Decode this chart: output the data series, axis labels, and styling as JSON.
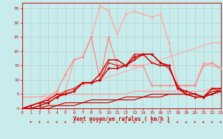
{
  "xlabel": "Vent moyen/en rafales ( km/h )",
  "bg": "#c8eceb",
  "grid_color": "#aacccc",
  "xlim": [
    0,
    23
  ],
  "ylim": [
    0,
    37
  ],
  "xticks": [
    0,
    1,
    2,
    3,
    4,
    5,
    6,
    7,
    8,
    9,
    10,
    11,
    12,
    13,
    14,
    15,
    16,
    17,
    18,
    19,
    20,
    21,
    22,
    23
  ],
  "yticks": [
    0,
    5,
    10,
    15,
    20,
    25,
    30,
    35
  ],
  "lines": [
    {
      "x": [
        0,
        1,
        2,
        3,
        4,
        5,
        6,
        7,
        8,
        9,
        10,
        11,
        12,
        13,
        14,
        15,
        16,
        17,
        18,
        19,
        20,
        21,
        22,
        23
      ],
      "y": [
        4,
        4,
        4,
        5,
        5,
        6,
        7,
        8,
        9,
        10,
        11,
        12,
        13,
        14,
        15,
        16,
        17,
        18,
        19,
        20,
        21,
        22,
        23,
        23
      ],
      "color": "#ffaaaa",
      "lw": 0.9,
      "marker": null,
      "ms": 0,
      "zorder": 2
    },
    {
      "x": [
        0,
        1,
        2,
        3,
        4,
        5,
        6,
        7,
        8,
        9,
        10,
        11,
        12,
        13,
        14,
        15,
        16,
        17,
        18,
        19,
        20,
        21,
        22,
        23
      ],
      "y": [
        0,
        1,
        2,
        3,
        5,
        6,
        17,
        18,
        25,
        36,
        34,
        26,
        33,
        34,
        33,
        32,
        33,
        23,
        8,
        8,
        8,
        16,
        15,
        14
      ],
      "color": "#ffaaaa",
      "lw": 1.1,
      "marker": "D",
      "ms": 1.8,
      "zorder": 3
    },
    {
      "x": [
        0,
        1,
        2,
        3,
        4,
        5,
        6,
        7,
        8,
        9,
        10,
        11,
        12,
        13,
        14,
        15,
        16,
        17,
        18,
        19,
        20,
        21,
        22,
        23
      ],
      "y": [
        0,
        1,
        2,
        4,
        6,
        12,
        17,
        18,
        25,
        10,
        25,
        15,
        15,
        15,
        15,
        8,
        8,
        8,
        8,
        8,
        8,
        15,
        16,
        14
      ],
      "color": "#ff8888",
      "lw": 1.0,
      "marker": "D",
      "ms": 1.8,
      "zorder": 3
    },
    {
      "x": [
        0,
        1,
        2,
        3,
        4,
        5,
        6,
        7,
        8,
        9,
        10,
        11,
        12,
        13,
        14,
        15,
        16,
        17,
        18,
        19,
        20,
        21,
        22,
        23
      ],
      "y": [
        4,
        4,
        4,
        4,
        4,
        5,
        5,
        5,
        5,
        5,
        5,
        5,
        5,
        6,
        6,
        6,
        6,
        6,
        6,
        6,
        6,
        6,
        7,
        7
      ],
      "color": "#ff9999",
      "lw": 0.9,
      "marker": null,
      "ms": 0,
      "zorder": 2
    },
    {
      "x": [
        0,
        1,
        2,
        3,
        4,
        5,
        6,
        7,
        8,
        9,
        10,
        11,
        12,
        13,
        14,
        15,
        16,
        17,
        18,
        19,
        20,
        21,
        22,
        23
      ],
      "y": [
        0,
        1,
        2,
        3,
        5,
        5,
        6,
        9,
        9,
        12,
        17,
        17,
        15,
        17,
        19,
        16,
        15,
        15,
        7,
        5,
        4,
        4,
        7,
        7
      ],
      "color": "#cc0000",
      "lw": 1.1,
      "marker": ">",
      "ms": 2.0,
      "zorder": 5
    },
    {
      "x": [
        0,
        1,
        2,
        3,
        4,
        5,
        6,
        7,
        8,
        9,
        10,
        11,
        12,
        13,
        14,
        15,
        16,
        17,
        18,
        19,
        20,
        21,
        22,
        23
      ],
      "y": [
        0,
        1,
        2,
        2,
        4,
        6,
        7,
        9,
        9,
        10,
        16,
        15,
        15,
        19,
        19,
        19,
        16,
        14,
        8,
        5,
        4,
        4,
        7,
        6
      ],
      "color": "#dd2222",
      "lw": 1.0,
      "marker": "^",
      "ms": 2.2,
      "zorder": 4
    },
    {
      "x": [
        0,
        1,
        2,
        3,
        4,
        5,
        6,
        7,
        8,
        9,
        10,
        11,
        12,
        13,
        14,
        15,
        16,
        17,
        18,
        19,
        20,
        21,
        22,
        23
      ],
      "y": [
        0,
        0,
        0,
        0,
        1,
        1,
        1,
        2,
        2,
        2,
        2,
        3,
        3,
        3,
        4,
        4,
        4,
        5,
        5,
        5,
        5,
        4,
        6,
        6
      ],
      "color": "#cc0000",
      "lw": 0.9,
      "marker": null,
      "ms": 0,
      "zorder": 3
    },
    {
      "x": [
        0,
        1,
        2,
        3,
        4,
        5,
        6,
        7,
        8,
        9,
        10,
        11,
        12,
        13,
        14,
        15,
        16,
        17,
        18,
        19,
        20,
        21,
        22,
        23
      ],
      "y": [
        0,
        0,
        0,
        1,
        1,
        2,
        2,
        2,
        3,
        3,
        3,
        3,
        4,
        4,
        4,
        5,
        5,
        5,
        5,
        5,
        5,
        4,
        5,
        7
      ],
      "color": "#cc0000",
      "lw": 0.9,
      "marker": null,
      "ms": 0,
      "zorder": 3
    },
    {
      "x": [
        0,
        1,
        2,
        3,
        4,
        5,
        6,
        7,
        8,
        9,
        10,
        11,
        12,
        13,
        14,
        15,
        16,
        17,
        18,
        19,
        20,
        21,
        22,
        23
      ],
      "y": [
        0,
        0,
        1,
        2,
        4,
        5,
        6,
        9,
        9,
        10,
        14,
        14,
        15,
        18,
        19,
        19,
        16,
        15,
        7,
        6,
        5,
        4,
        5,
        6
      ],
      "color": "#cc0000",
      "lw": 1.1,
      "marker": "D",
      "ms": 2.0,
      "zorder": 5
    }
  ],
  "wind_arrows_x": [
    1,
    2,
    3,
    4,
    5,
    6,
    7,
    8,
    9,
    10,
    11,
    12,
    13,
    14,
    15,
    16,
    17,
    18,
    19,
    20,
    21,
    22,
    23
  ],
  "wind_angles_deg": [
    225,
    210,
    270,
    270,
    270,
    315,
    315,
    315,
    315,
    315,
    315,
    315,
    315,
    315,
    315,
    315,
    270,
    270,
    315,
    270,
    270,
    270,
    270
  ]
}
